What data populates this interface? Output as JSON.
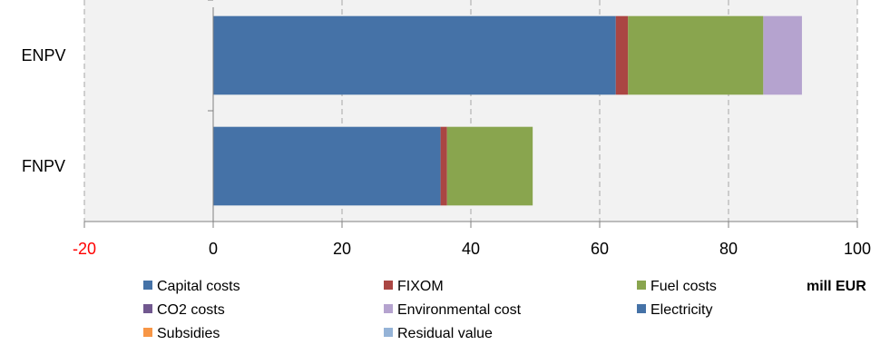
{
  "chart_data": {
    "type": "bar",
    "orientation": "horizontal",
    "stacked": true,
    "categories": [
      "ENPV",
      "FNPV"
    ],
    "xlim": [
      -20,
      100
    ],
    "x_ticks": [
      -20,
      0,
      20,
      40,
      60,
      80,
      100
    ],
    "unit_label": "mill EUR",
    "grid": true,
    "legend_position": "bottom",
    "series": [
      {
        "name": "Capital costs",
        "color": "#4572a7",
        "values": [
          62.5,
          35.3
        ]
      },
      {
        "name": "FIXOM",
        "color": "#aa4643",
        "values": [
          1.9,
          1.0
        ]
      },
      {
        "name": "Fuel costs",
        "color": "#89a54e",
        "values": [
          21.0,
          13.3
        ]
      },
      {
        "name": "CO2 costs",
        "color": "#71588f",
        "values": [
          0,
          0
        ]
      },
      {
        "name": "Environmental cost",
        "color": "#b5a3cf",
        "values": [
          6.0,
          0
        ]
      },
      {
        "name": "Electricity",
        "color": "#4572a7",
        "values": [
          0,
          0
        ]
      },
      {
        "name": "Subsidies",
        "color": "#f79646",
        "values": [
          0,
          0
        ]
      },
      {
        "name": "Residual value",
        "color": "#95b3d7",
        "values": [
          0,
          0
        ]
      }
    ]
  },
  "colors": {
    "plot_background": "#f2f2f2",
    "grid": "#a6a6a6",
    "negative_tick": "#ff0000"
  }
}
